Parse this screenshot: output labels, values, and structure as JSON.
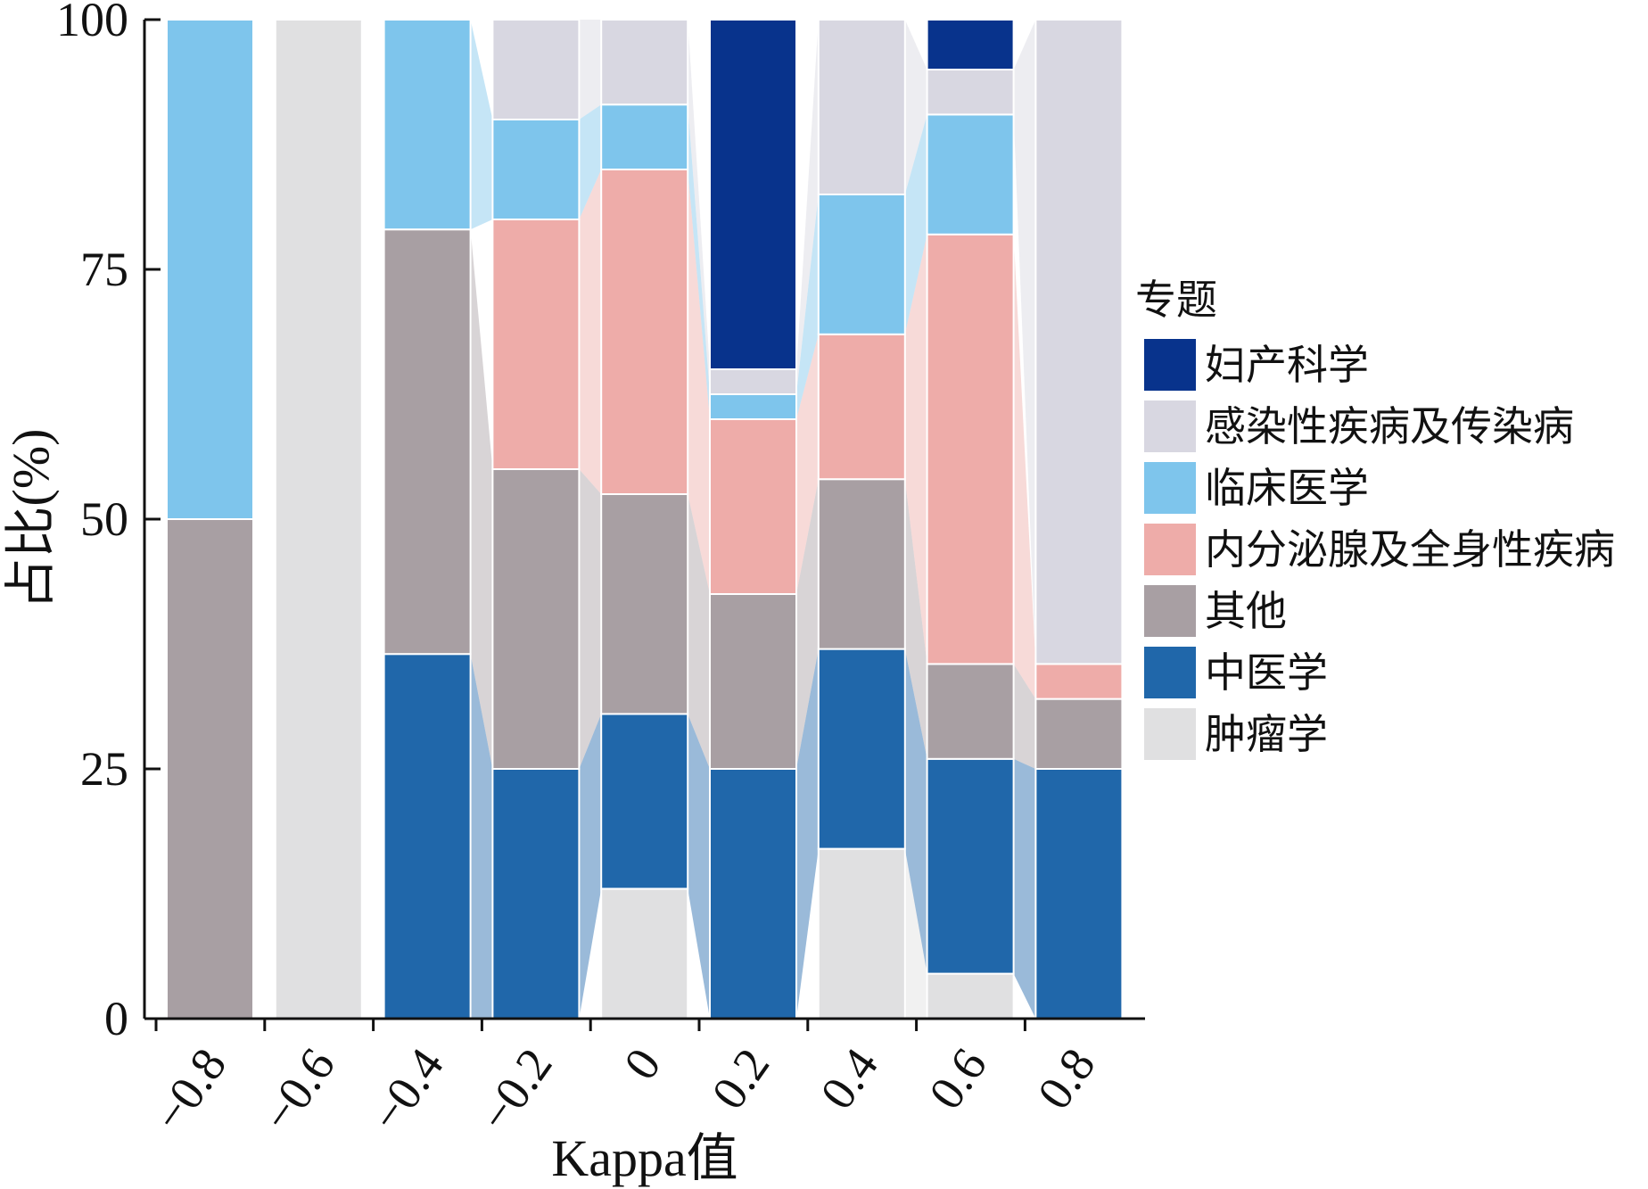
{
  "chart_data": {
    "type": "bar",
    "stacked": true,
    "percent": true,
    "xlabel": "Kappa值",
    "ylabel": "占比(%)",
    "ylim": [
      0,
      100
    ],
    "yticks": [
      0,
      25,
      50,
      75,
      100
    ],
    "categories": [
      "−0.8",
      "−0.6",
      "−0.4",
      "−0.2",
      "0",
      "0.2",
      "0.4",
      "0.6",
      "0.8"
    ],
    "legend": {
      "title": "专题",
      "position": "right"
    },
    "series": [
      {
        "name": "肿瘤学",
        "color": "#e0e0e1",
        "values": [
          0,
          100,
          0,
          0,
          13,
          0,
          17,
          4.5,
          0
        ]
      },
      {
        "name": "中医学",
        "color": "#2067aa",
        "values": [
          0,
          0,
          36.5,
          25,
          17.5,
          25,
          20,
          21.5,
          25
        ]
      },
      {
        "name": "其他",
        "color": "#a89fa3",
        "values": [
          50,
          0,
          42.5,
          30,
          22,
          17.5,
          17,
          9.5,
          7
        ]
      },
      {
        "name": "内分泌腺及全身性疾病",
        "color": "#eeaca9",
        "values": [
          0,
          0,
          0,
          25,
          32.5,
          17.5,
          14.5,
          43,
          3.5
        ]
      },
      {
        "name": "临床医学",
        "color": "#7ec5ec",
        "values": [
          50,
          0,
          21,
          10,
          6.5,
          2.5,
          14,
          12,
          0
        ]
      },
      {
        "name": "感染性疾病及传染病",
        "color": "#d8d7e1",
        "values": [
          0,
          0,
          0,
          10,
          8.5,
          2.5,
          17.5,
          4.5,
          64.5
        ]
      },
      {
        "name": "妇产科学",
        "color": "#08338c",
        "values": [
          0,
          0,
          0,
          0,
          0,
          35,
          0,
          5,
          0
        ]
      }
    ],
    "legend_order": [
      "妇产科学",
      "感染性疾病及传染病",
      "临床医学",
      "内分泌腺及全身性疾病",
      "其他",
      "中医学",
      "肿瘤学"
    ],
    "flow_bands": true,
    "grid": false
  }
}
